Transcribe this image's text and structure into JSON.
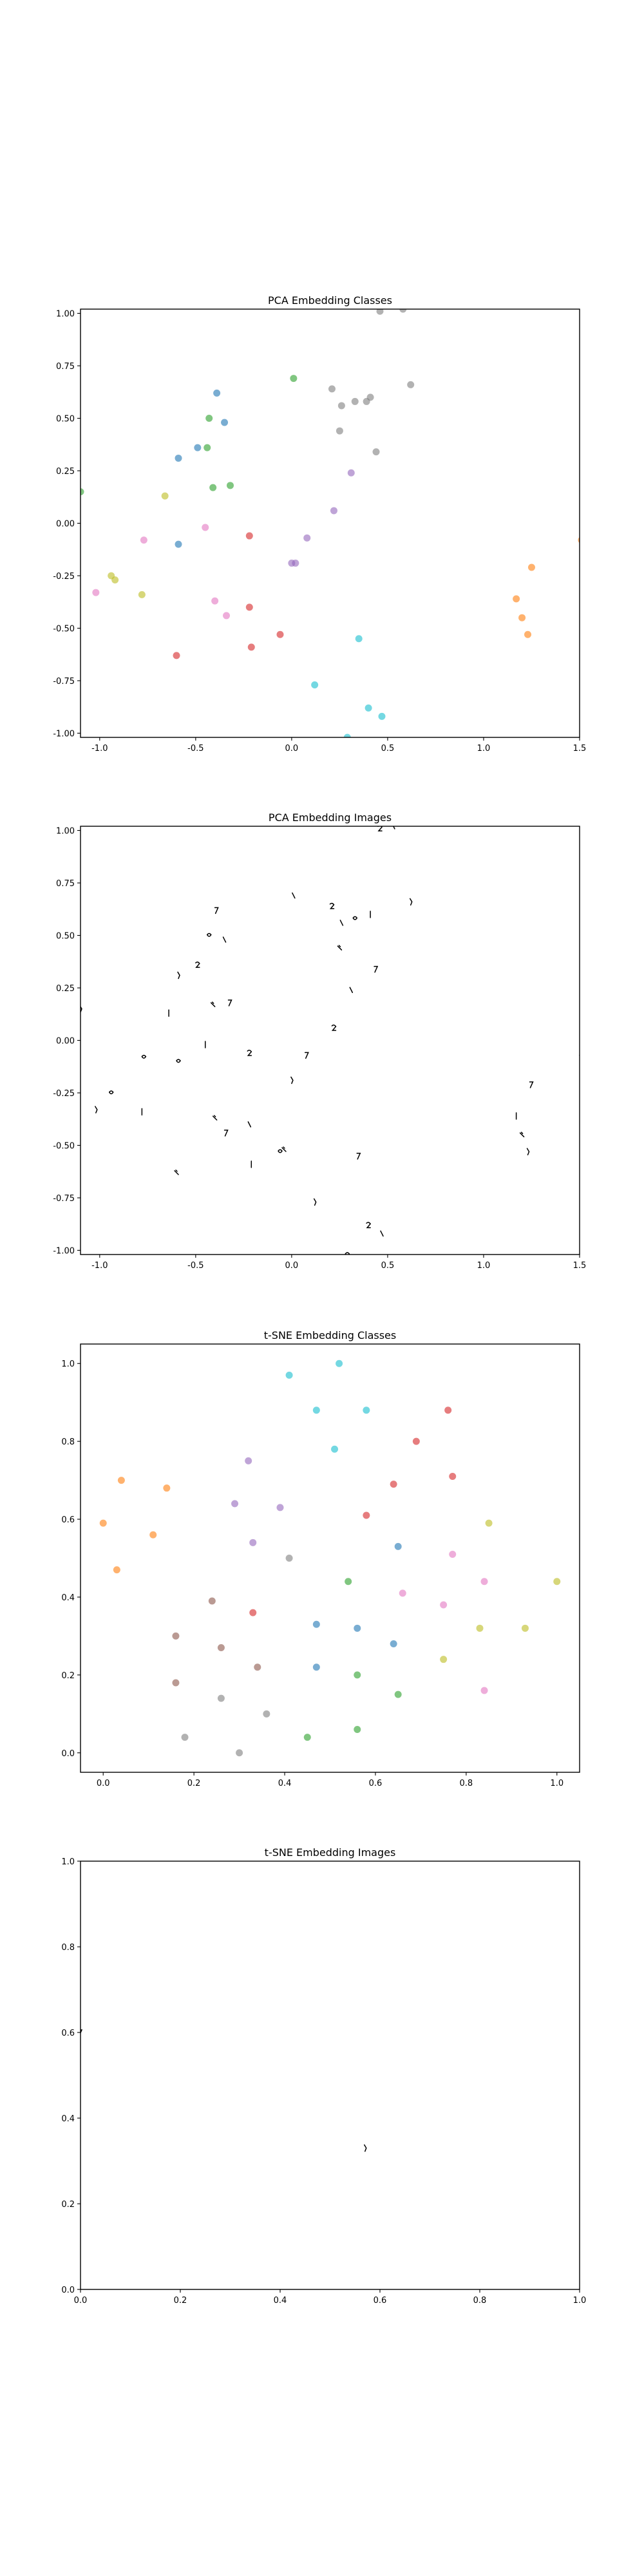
{
  "chart_data": [
    {
      "type": "scatter",
      "title": "PCA Embedding Classes",
      "xlim": [
        -1.1,
        1.5
      ],
      "ylim": [
        -1.02,
        1.02
      ],
      "xticks": [
        "-1.0",
        "-0.5",
        "0.0",
        "0.5",
        "1.0",
        "1.5"
      ],
      "yticks": [
        "-1.00",
        "-0.75",
        "-0.50",
        "-0.25",
        "0.00",
        "0.25",
        "0.50",
        "0.75",
        "1.00"
      ],
      "grid": false,
      "markers": "colored-dots",
      "points": [
        {
          "x": -0.39,
          "y": 0.62,
          "color": "#1f77b4"
        },
        {
          "x": -0.59,
          "y": 0.31,
          "color": "#1f77b4"
        },
        {
          "x": -0.49,
          "y": 0.36,
          "color": "#1f77b4"
        },
        {
          "x": -0.35,
          "y": 0.48,
          "color": "#1f77b4"
        },
        {
          "x": -0.59,
          "y": -0.1,
          "color": "#1f77b4"
        },
        {
          "x": 1.17,
          "y": -0.36,
          "color": "#ff7f0e"
        },
        {
          "x": 1.2,
          "y": -0.45,
          "color": "#ff7f0e"
        },
        {
          "x": 1.25,
          "y": -0.21,
          "color": "#ff7f0e"
        },
        {
          "x": 1.23,
          "y": -0.53,
          "color": "#ff7f0e"
        },
        {
          "x": 1.51,
          "y": -0.08,
          "color": "#ff7f0e"
        },
        {
          "x": 0.01,
          "y": 0.69,
          "color": "#2ca02c"
        },
        {
          "x": -0.43,
          "y": 0.5,
          "color": "#2ca02c"
        },
        {
          "x": -0.44,
          "y": 0.36,
          "color": "#2ca02c"
        },
        {
          "x": -0.41,
          "y": 0.17,
          "color": "#2ca02c"
        },
        {
          "x": -0.32,
          "y": 0.18,
          "color": "#2ca02c"
        },
        {
          "x": -1.1,
          "y": 0.15,
          "color": "#2ca02c"
        },
        {
          "x": -0.22,
          "y": -0.06,
          "color": "#d62728"
        },
        {
          "x": -0.22,
          "y": -0.4,
          "color": "#d62728"
        },
        {
          "x": -0.06,
          "y": -0.53,
          "color": "#d62728"
        },
        {
          "x": -0.21,
          "y": -0.59,
          "color": "#d62728"
        },
        {
          "x": -0.6,
          "y": -0.63,
          "color": "#d62728"
        },
        {
          "x": 0.08,
          "y": -0.07,
          "color": "#9467bd"
        },
        {
          "x": 0.0,
          "y": -0.19,
          "color": "#9467bd"
        },
        {
          "x": 0.02,
          "y": -0.19,
          "color": "#9467bd"
        },
        {
          "x": 0.22,
          "y": 0.06,
          "color": "#9467bd"
        },
        {
          "x": 0.31,
          "y": 0.24,
          "color": "#9467bd"
        },
        {
          "x": -0.77,
          "y": -0.08,
          "color": "#e377c2"
        },
        {
          "x": -0.45,
          "y": -0.02,
          "color": "#e377c2"
        },
        {
          "x": -0.4,
          "y": -0.37,
          "color": "#e377c2"
        },
        {
          "x": -0.34,
          "y": -0.44,
          "color": "#e377c2"
        },
        {
          "x": -1.02,
          "y": -0.33,
          "color": "#e377c2"
        },
        {
          "x": 0.21,
          "y": 0.64,
          "color": "#7f7f7f"
        },
        {
          "x": 0.26,
          "y": 0.56,
          "color": "#7f7f7f"
        },
        {
          "x": 0.33,
          "y": 0.58,
          "color": "#7f7f7f"
        },
        {
          "x": 0.39,
          "y": 0.58,
          "color": "#7f7f7f"
        },
        {
          "x": 0.41,
          "y": 0.6,
          "color": "#7f7f7f"
        },
        {
          "x": 0.25,
          "y": 0.44,
          "color": "#7f7f7f"
        },
        {
          "x": 0.44,
          "y": 0.34,
          "color": "#7f7f7f"
        },
        {
          "x": 0.62,
          "y": 0.66,
          "color": "#7f7f7f"
        },
        {
          "x": 0.46,
          "y": 1.01,
          "color": "#7f7f7f"
        },
        {
          "x": 0.58,
          "y": 1.02,
          "color": "#7f7f7f"
        },
        {
          "x": -0.66,
          "y": 0.13,
          "color": "#bcbd22"
        },
        {
          "x": -0.94,
          "y": -0.25,
          "color": "#bcbd22"
        },
        {
          "x": -0.92,
          "y": -0.27,
          "color": "#bcbd22"
        },
        {
          "x": -0.78,
          "y": -0.34,
          "color": "#bcbd22"
        },
        {
          "x": 0.35,
          "y": -0.55,
          "color": "#17becf"
        },
        {
          "x": 0.12,
          "y": -0.77,
          "color": "#17becf"
        },
        {
          "x": 0.4,
          "y": -0.88,
          "color": "#17becf"
        },
        {
          "x": 0.47,
          "y": -0.92,
          "color": "#17becf"
        },
        {
          "x": 0.29,
          "y": -1.02,
          "color": "#17becf"
        }
      ]
    },
    {
      "type": "scatter",
      "title": "PCA Embedding Images",
      "xlim": [
        -1.1,
        1.5
      ],
      "ylim": [
        -1.02,
        1.02
      ],
      "xticks": [
        "-1.0",
        "-0.5",
        "0.0",
        "0.5",
        "1.0",
        "1.5"
      ],
      "yticks": [
        "-1.00",
        "-0.75",
        "-0.50",
        "-0.25",
        "0.00",
        "0.25",
        "0.50",
        "0.75",
        "1.00"
      ],
      "grid": false,
      "markers": "small-digit-images",
      "points": [
        {
          "x": -0.39,
          "y": 0.62
        },
        {
          "x": -0.59,
          "y": 0.31
        },
        {
          "x": -0.49,
          "y": 0.36
        },
        {
          "x": -0.35,
          "y": 0.48
        },
        {
          "x": -0.59,
          "y": -0.1
        },
        {
          "x": 1.17,
          "y": -0.36
        },
        {
          "x": 1.2,
          "y": -0.45
        },
        {
          "x": 1.25,
          "y": -0.21
        },
        {
          "x": 1.23,
          "y": -0.53
        },
        {
          "x": 1.51,
          "y": -0.08
        },
        {
          "x": 0.01,
          "y": 0.69
        },
        {
          "x": -0.43,
          "y": 0.5
        },
        {
          "x": -0.64,
          "y": 0.13
        },
        {
          "x": -0.41,
          "y": 0.17
        },
        {
          "x": -0.32,
          "y": 0.18
        },
        {
          "x": -1.1,
          "y": 0.15
        },
        {
          "x": -0.22,
          "y": -0.06
        },
        {
          "x": -0.22,
          "y": -0.4
        },
        {
          "x": -0.06,
          "y": -0.53
        },
        {
          "x": -0.21,
          "y": -0.59
        },
        {
          "x": -0.6,
          "y": -0.63
        },
        {
          "x": 0.08,
          "y": -0.07
        },
        {
          "x": 0.0,
          "y": -0.19
        },
        {
          "x": 0.22,
          "y": 0.06
        },
        {
          "x": 0.31,
          "y": 0.24
        },
        {
          "x": -0.77,
          "y": -0.08
        },
        {
          "x": -0.45,
          "y": -0.02
        },
        {
          "x": -0.4,
          "y": -0.37
        },
        {
          "x": -0.34,
          "y": -0.44
        },
        {
          "x": -1.02,
          "y": -0.33
        },
        {
          "x": 0.21,
          "y": 0.64
        },
        {
          "x": 0.26,
          "y": 0.56
        },
        {
          "x": 0.33,
          "y": 0.58
        },
        {
          "x": 0.41,
          "y": 0.6
        },
        {
          "x": 0.25,
          "y": 0.44
        },
        {
          "x": 0.44,
          "y": 0.34
        },
        {
          "x": 0.62,
          "y": 0.66
        },
        {
          "x": 0.46,
          "y": 1.01
        },
        {
          "x": 0.53,
          "y": 1.02
        },
        {
          "x": -0.94,
          "y": -0.25
        },
        {
          "x": -0.78,
          "y": -0.34
        },
        {
          "x": -0.04,
          "y": -0.52
        },
        {
          "x": 0.35,
          "y": -0.55
        },
        {
          "x": 0.12,
          "y": -0.77
        },
        {
          "x": 0.4,
          "y": -0.88
        },
        {
          "x": 0.47,
          "y": -0.92
        },
        {
          "x": 0.29,
          "y": -1.02
        }
      ]
    },
    {
      "type": "scatter",
      "title": "t-SNE Embedding Classes",
      "xlim": [
        -0.05,
        1.05
      ],
      "ylim": [
        -0.05,
        1.05
      ],
      "xticks": [
        "0.0",
        "0.2",
        "0.4",
        "0.6",
        "0.8",
        "1.0"
      ],
      "yticks": [
        "0.0",
        "0.2",
        "0.4",
        "0.6",
        "0.8",
        "1.0"
      ],
      "grid": false,
      "markers": "colored-dots",
      "points": [
        {
          "x": 0.52,
          "y": 1.0,
          "color": "#17becf"
        },
        {
          "x": 0.41,
          "y": 0.97,
          "color": "#17becf"
        },
        {
          "x": 0.47,
          "y": 0.88,
          "color": "#17becf"
        },
        {
          "x": 0.58,
          "y": 0.88,
          "color": "#17becf"
        },
        {
          "x": 0.51,
          "y": 0.78,
          "color": "#17becf"
        },
        {
          "x": 0.76,
          "y": 0.88,
          "color": "#d62728"
        },
        {
          "x": 0.69,
          "y": 0.8,
          "color": "#d62728"
        },
        {
          "x": 0.77,
          "y": 0.71,
          "color": "#d62728"
        },
        {
          "x": 0.64,
          "y": 0.69,
          "color": "#d62728"
        },
        {
          "x": 0.58,
          "y": 0.61,
          "color": "#d62728"
        },
        {
          "x": 0.33,
          "y": 0.36,
          "color": "#d62728"
        },
        {
          "x": 0.04,
          "y": 0.7,
          "color": "#ff7f0e"
        },
        {
          "x": 0.0,
          "y": 0.59,
          "color": "#ff7f0e"
        },
        {
          "x": 0.14,
          "y": 0.68,
          "color": "#ff7f0e"
        },
        {
          "x": 0.11,
          "y": 0.56,
          "color": "#ff7f0e"
        },
        {
          "x": 0.03,
          "y": 0.47,
          "color": "#ff7f0e"
        },
        {
          "x": 0.32,
          "y": 0.75,
          "color": "#9467bd"
        },
        {
          "x": 0.29,
          "y": 0.64,
          "color": "#9467bd"
        },
        {
          "x": 0.39,
          "y": 0.63,
          "color": "#9467bd"
        },
        {
          "x": 0.33,
          "y": 0.54,
          "color": "#9467bd"
        },
        {
          "x": 0.24,
          "y": 0.39,
          "color": "#8c564b"
        },
        {
          "x": 0.16,
          "y": 0.3,
          "color": "#8c564b"
        },
        {
          "x": 0.26,
          "y": 0.27,
          "color": "#8c564b"
        },
        {
          "x": 0.34,
          "y": 0.22,
          "color": "#8c564b"
        },
        {
          "x": 0.16,
          "y": 0.18,
          "color": "#8c564b"
        },
        {
          "x": 0.41,
          "y": 0.5,
          "color": "#7f7f7f"
        },
        {
          "x": 0.26,
          "y": 0.14,
          "color": "#7f7f7f"
        },
        {
          "x": 0.36,
          "y": 0.1,
          "color": "#7f7f7f"
        },
        {
          "x": 0.18,
          "y": 0.04,
          "color": "#7f7f7f"
        },
        {
          "x": 0.3,
          "y": 0.0,
          "color": "#7f7f7f"
        },
        {
          "x": 0.65,
          "y": 0.53,
          "color": "#1f77b4"
        },
        {
          "x": 0.47,
          "y": 0.33,
          "color": "#1f77b4"
        },
        {
          "x": 0.56,
          "y": 0.32,
          "color": "#1f77b4"
        },
        {
          "x": 0.64,
          "y": 0.28,
          "color": "#1f77b4"
        },
        {
          "x": 0.47,
          "y": 0.22,
          "color": "#1f77b4"
        },
        {
          "x": 0.54,
          "y": 0.44,
          "color": "#2ca02c"
        },
        {
          "x": 0.56,
          "y": 0.2,
          "color": "#2ca02c"
        },
        {
          "x": 0.65,
          "y": 0.15,
          "color": "#2ca02c"
        },
        {
          "x": 0.45,
          "y": 0.04,
          "color": "#2ca02c"
        },
        {
          "x": 0.56,
          "y": 0.06,
          "color": "#2ca02c"
        },
        {
          "x": 0.77,
          "y": 0.51,
          "color": "#e377c2"
        },
        {
          "x": 0.66,
          "y": 0.41,
          "color": "#e377c2"
        },
        {
          "x": 0.75,
          "y": 0.38,
          "color": "#e377c2"
        },
        {
          "x": 0.84,
          "y": 0.44,
          "color": "#e377c2"
        },
        {
          "x": 0.84,
          "y": 0.16,
          "color": "#e377c2"
        },
        {
          "x": 0.85,
          "y": 0.59,
          "color": "#bcbd22"
        },
        {
          "x": 1.0,
          "y": 0.44,
          "color": "#bcbd22"
        },
        {
          "x": 0.83,
          "y": 0.32,
          "color": "#bcbd22"
        },
        {
          "x": 0.93,
          "y": 0.32,
          "color": "#bcbd22"
        },
        {
          "x": 0.75,
          "y": 0.24,
          "color": "#bcbd22"
        }
      ]
    },
    {
      "type": "scatter",
      "title": "t-SNE Embedding Images",
      "xlim": [
        0.0,
        1.0
      ],
      "ylim": [
        0.0,
        1.0
      ],
      "xticks": [
        "0.0",
        "0.2",
        "0.4",
        "0.6",
        "0.8",
        "1.0"
      ],
      "yticks": [
        "0.0",
        "0.2",
        "0.4",
        "0.6",
        "0.8",
        "1.0"
      ],
      "grid": false,
      "markers": "small-digit-images",
      "points": [
        {
          "x": 0.0,
          "y": 0.6
        },
        {
          "x": 0.57,
          "y": 0.33
        }
      ]
    }
  ]
}
